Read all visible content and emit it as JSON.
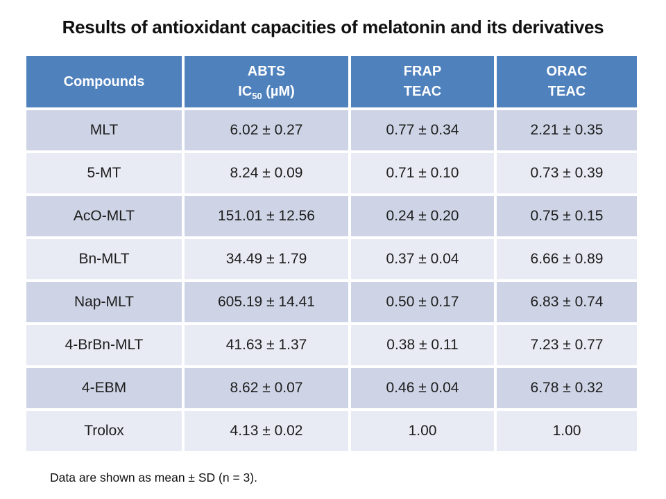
{
  "slide": {
    "title": "Results of antioxidant capacities of melatonin and its derivatives",
    "footnote": "Data are shown as mean ± SD (n = 3)."
  },
  "colors": {
    "header_bg": "#4f81bd",
    "header_text": "#ffffff",
    "row_dark": "#ced4e6",
    "row_light": "#e9ebf4",
    "body_text": "#1c1c1c",
    "background": "#ffffff"
  },
  "table": {
    "header": {
      "compounds": "Compounds",
      "abts_line1": "ABTS",
      "abts_ic_prefix": "IC",
      "abts_ic_sub": "50",
      "abts_ic_suffix": " (µM)",
      "frap_line1": "FRAP",
      "frap_line2": "TEAC",
      "orac_line1": "ORAC",
      "orac_line2": "TEAC"
    },
    "rows": [
      {
        "compound": "MLT",
        "abts": "6.02 ± 0.27",
        "frap": "0.77 ± 0.34",
        "orac": "2.21 ± 0.35"
      },
      {
        "compound": "5-MT",
        "abts": "8.24 ± 0.09",
        "frap": "0.71 ± 0.10",
        "orac": "0.73 ± 0.39"
      },
      {
        "compound": "AcO-MLT",
        "abts": "151.01 ± 12.56",
        "frap": "0.24 ± 0.20",
        "orac": "0.75 ± 0.15"
      },
      {
        "compound": "Bn-MLT",
        "abts": "34.49 ± 1.79",
        "frap": "0.37 ± 0.04",
        "orac": "6.66 ± 0.89"
      },
      {
        "compound": "Nap-MLT",
        "abts": "605.19 ± 14.41",
        "frap": "0.50 ± 0.17",
        "orac": "6.83 ± 0.74"
      },
      {
        "compound": "4-BrBn-MLT",
        "abts": "41.63 ± 1.37",
        "frap": "0.38 ± 0.11",
        "orac": "7.23 ± 0.77"
      },
      {
        "compound": "4-EBM",
        "abts": "8.62 ± 0.07",
        "frap": "0.46 ± 0.04",
        "orac": "6.78 ± 0.32"
      },
      {
        "compound": "Trolox",
        "abts": "4.13 ± 0.02",
        "frap": "1.00",
        "orac": "1.00"
      }
    ]
  }
}
